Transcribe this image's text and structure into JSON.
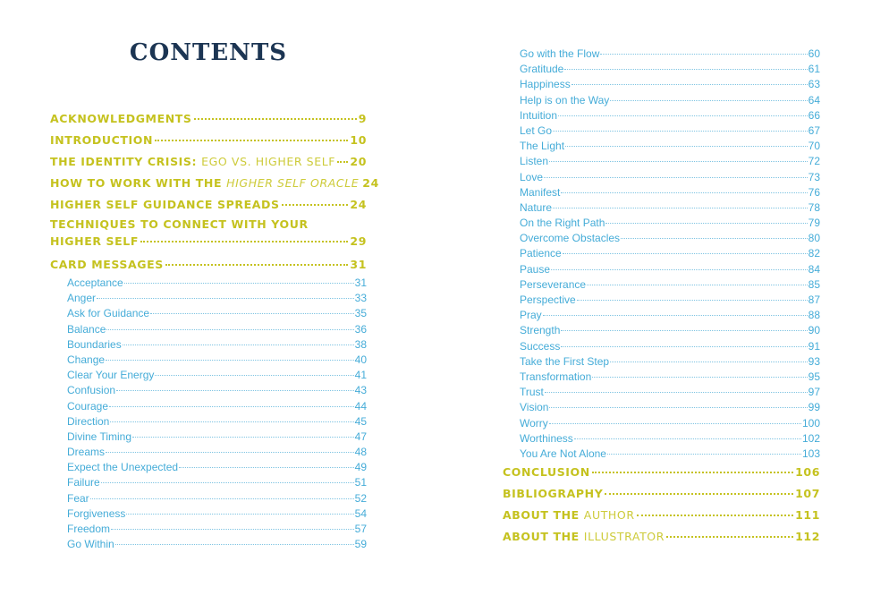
{
  "title": "CONTENTS",
  "left": {
    "main": [
      {
        "title": "ACKNOWLEDGMENTS",
        "page": 9
      },
      {
        "title": "INTRODUCTION",
        "page": 10
      },
      {
        "title": "THE IDENTITY CRISIS:",
        "subtitle": "EGO VS. HIGHER SELF",
        "page": 20
      },
      {
        "title": "HOW TO WORK WITH THE",
        "subtitle": "HIGHER SELF ORACLE",
        "subtitle_italic": true,
        "page": 24
      },
      {
        "title": "HIGHER SELF GUIDANCE SPREADS",
        "page": 24
      },
      {
        "title": "TECHNIQUES TO CONNECT WITH YOUR",
        "title_cont": "HIGHER SELF",
        "page": 29
      },
      {
        "title": "CARD MESSAGES",
        "page": 31
      }
    ],
    "sub": [
      {
        "title": "Acceptance",
        "page": 31
      },
      {
        "title": "Anger",
        "page": 33
      },
      {
        "title": "Ask for Guidance",
        "page": 35
      },
      {
        "title": "Balance",
        "page": 36
      },
      {
        "title": "Boundaries",
        "page": 38
      },
      {
        "title": "Change",
        "page": 40
      },
      {
        "title": "Clear Your Energy",
        "page": 41
      },
      {
        "title": "Confusion",
        "page": 43
      },
      {
        "title": "Courage",
        "page": 44
      },
      {
        "title": "Direction",
        "page": 45
      },
      {
        "title": "Divine Timing",
        "page": 47
      },
      {
        "title": "Dreams",
        "page": 48
      },
      {
        "title": "Expect the Unexpected",
        "page": 49
      },
      {
        "title": "Failure",
        "page": 51
      },
      {
        "title": "Fear",
        "page": 52
      },
      {
        "title": "Forgiveness",
        "page": 54
      },
      {
        "title": "Freedom",
        "page": 57
      },
      {
        "title": "Go Within",
        "page": 59
      }
    ]
  },
  "right": {
    "sub": [
      {
        "title": "Go with the Flow",
        "page": 60
      },
      {
        "title": "Gratitude",
        "page": 61
      },
      {
        "title": "Happiness",
        "page": 63
      },
      {
        "title": "Help is on the Way",
        "page": 64
      },
      {
        "title": "Intuition",
        "page": 66
      },
      {
        "title": "Let Go",
        "page": 67
      },
      {
        "title": "The Light",
        "page": 70
      },
      {
        "title": "Listen",
        "page": 72
      },
      {
        "title": "Love",
        "page": 73
      },
      {
        "title": "Manifest",
        "page": 76
      },
      {
        "title": "Nature",
        "page": 78
      },
      {
        "title": "On the Right Path",
        "page": 79
      },
      {
        "title": "Overcome Obstacles",
        "page": 80
      },
      {
        "title": "Patience",
        "page": 82
      },
      {
        "title": "Pause",
        "page": 84
      },
      {
        "title": "Perseverance",
        "page": 85
      },
      {
        "title": "Perspective",
        "page": 87
      },
      {
        "title": "Pray",
        "page": 88
      },
      {
        "title": "Strength",
        "page": 90
      },
      {
        "title": "Success",
        "page": 91
      },
      {
        "title": "Take the First Step",
        "page": 93
      },
      {
        "title": "Transformation",
        "page": 95
      },
      {
        "title": "Trust",
        "page": 97
      },
      {
        "title": "Vision",
        "page": 99
      },
      {
        "title": "Worry",
        "page": 100
      },
      {
        "title": "Worthiness",
        "page": 102
      },
      {
        "title": "You Are Not Alone",
        "page": 103
      }
    ],
    "main": [
      {
        "title": "CONCLUSION",
        "page": 106
      },
      {
        "title": "BIBLIOGRAPHY",
        "page": 107
      },
      {
        "title": "ABOUT THE",
        "subtitle": "AUTHOR",
        "page": 111
      },
      {
        "title": "ABOUT THE",
        "subtitle": "ILLUSTRATOR",
        "page": 112
      }
    ]
  }
}
